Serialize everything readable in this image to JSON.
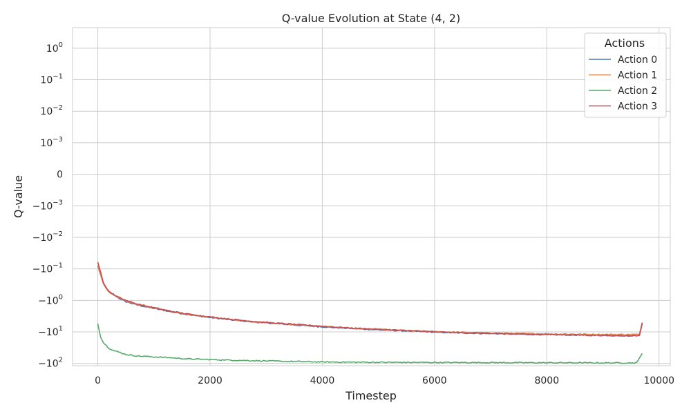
{
  "chart_data": {
    "type": "line",
    "title": "Q-value Evolution at State (4, 2)",
    "xlabel": "Timestep",
    "ylabel": "Q-value",
    "yscale": "symlog",
    "xlim": [
      -450,
      10200
    ],
    "xticks": [
      0,
      2000,
      4000,
      6000,
      8000,
      10000
    ],
    "xtick_labels": [
      "0",
      "2000",
      "4000",
      "6000",
      "8000",
      "10000"
    ],
    "yticks": [
      1,
      0.1,
      0.01,
      0.001,
      0,
      -0.001,
      -0.01,
      -0.1,
      -1,
      -10,
      -100
    ],
    "ytick_labels": [
      {
        "base": "10",
        "exp": "0"
      },
      {
        "base": "10",
        "exp": "−1"
      },
      {
        "base": "10",
        "exp": "−2"
      },
      {
        "base": "10",
        "exp": "−3"
      },
      {
        "base": "0",
        "exp": ""
      },
      {
        "base": "−10",
        "exp": "−3"
      },
      {
        "base": "−10",
        "exp": "−2"
      },
      {
        "base": "−10",
        "exp": "−1"
      },
      {
        "base": "−10",
        "exp": "0"
      },
      {
        "base": "−10",
        "exp": "1"
      },
      {
        "base": "−10",
        "exp": "2"
      }
    ],
    "grid": true,
    "legend": {
      "title": "Actions",
      "position": "top-right"
    },
    "series": [
      {
        "name": "Action 0",
        "color": "#4c72b0",
        "x": [
          0,
          100,
          200,
          300,
          400,
          500,
          700,
          1000,
          1300,
          1600,
          2000,
          2400,
          2800,
          3200,
          3600,
          4000,
          4500,
          5000,
          5500,
          6000,
          6500,
          7000,
          7500,
          8000,
          8500,
          9000,
          9500,
          9650,
          9700
        ],
        "y": [
          -0.08,
          -0.3,
          -0.55,
          -0.7,
          -0.9,
          -1.1,
          -1.4,
          -1.8,
          -2.3,
          -2.8,
          -3.5,
          -4.2,
          -4.9,
          -5.5,
          -6.2,
          -6.9,
          -7.8,
          -8.6,
          -9.3,
          -10.2,
          -10.8,
          -11.3,
          -11.8,
          -12.2,
          -12.6,
          -12.9,
          -13.2,
          -13.0,
          -5.5
        ]
      },
      {
        "name": "Action 1",
        "color": "#dd8452",
        "x": [
          0,
          100,
          200,
          300,
          400,
          500,
          700,
          1000,
          1300,
          1600,
          2000,
          2400,
          2800,
          3200,
          3600,
          4000,
          4500,
          5000,
          5500,
          6000,
          6500,
          7000,
          7500,
          8000,
          8500,
          9000,
          9500,
          9650,
          9700
        ],
        "y": [
          -0.08,
          -0.3,
          -0.55,
          -0.7,
          -0.85,
          -1.05,
          -1.35,
          -1.75,
          -2.25,
          -2.75,
          -3.4,
          -4.1,
          -4.8,
          -5.4,
          -6.0,
          -6.7,
          -7.6,
          -8.3,
          -9.0,
          -9.8,
          -10.3,
          -10.8,
          -11.2,
          -11.5,
          -11.8,
          -12.0,
          -12.1,
          -11.9,
          -5.0
        ]
      },
      {
        "name": "Action 2",
        "color": "#55a868",
        "x": [
          0,
          50,
          100,
          200,
          300,
          400,
          500,
          700,
          1000,
          1300,
          1600,
          2000,
          2400,
          2800,
          3200,
          3600,
          4000,
          5000,
          6000,
          7000,
          8000,
          9000,
          9600,
          9700
        ],
        "y": [
          -5.5,
          -14,
          -22,
          -33,
          -40,
          -45,
          -52,
          -58,
          -62,
          -66,
          -72,
          -75,
          -79,
          -82,
          -85,
          -87,
          -90,
          -92,
          -93,
          -94,
          -95,
          -96,
          -96,
          -48
        ]
      },
      {
        "name": "Action 3",
        "color": "#c44e52",
        "x": [
          0,
          100,
          200,
          300,
          400,
          500,
          700,
          1000,
          1300,
          1600,
          2000,
          2400,
          2800,
          3200,
          3600,
          4000,
          4500,
          5000,
          5500,
          6000,
          6500,
          7000,
          7500,
          8000,
          8500,
          9000,
          9500,
          9650,
          9700
        ],
        "y": [
          -0.06,
          -0.28,
          -0.52,
          -0.68,
          -0.82,
          -1.0,
          -1.3,
          -1.7,
          -2.2,
          -2.7,
          -3.35,
          -4.0,
          -4.7,
          -5.3,
          -5.9,
          -6.6,
          -7.5,
          -8.3,
          -9.1,
          -10.0,
          -10.6,
          -11.2,
          -11.7,
          -12.1,
          -12.5,
          -12.9,
          -13.2,
          -13.0,
          -5.2
        ]
      }
    ]
  }
}
